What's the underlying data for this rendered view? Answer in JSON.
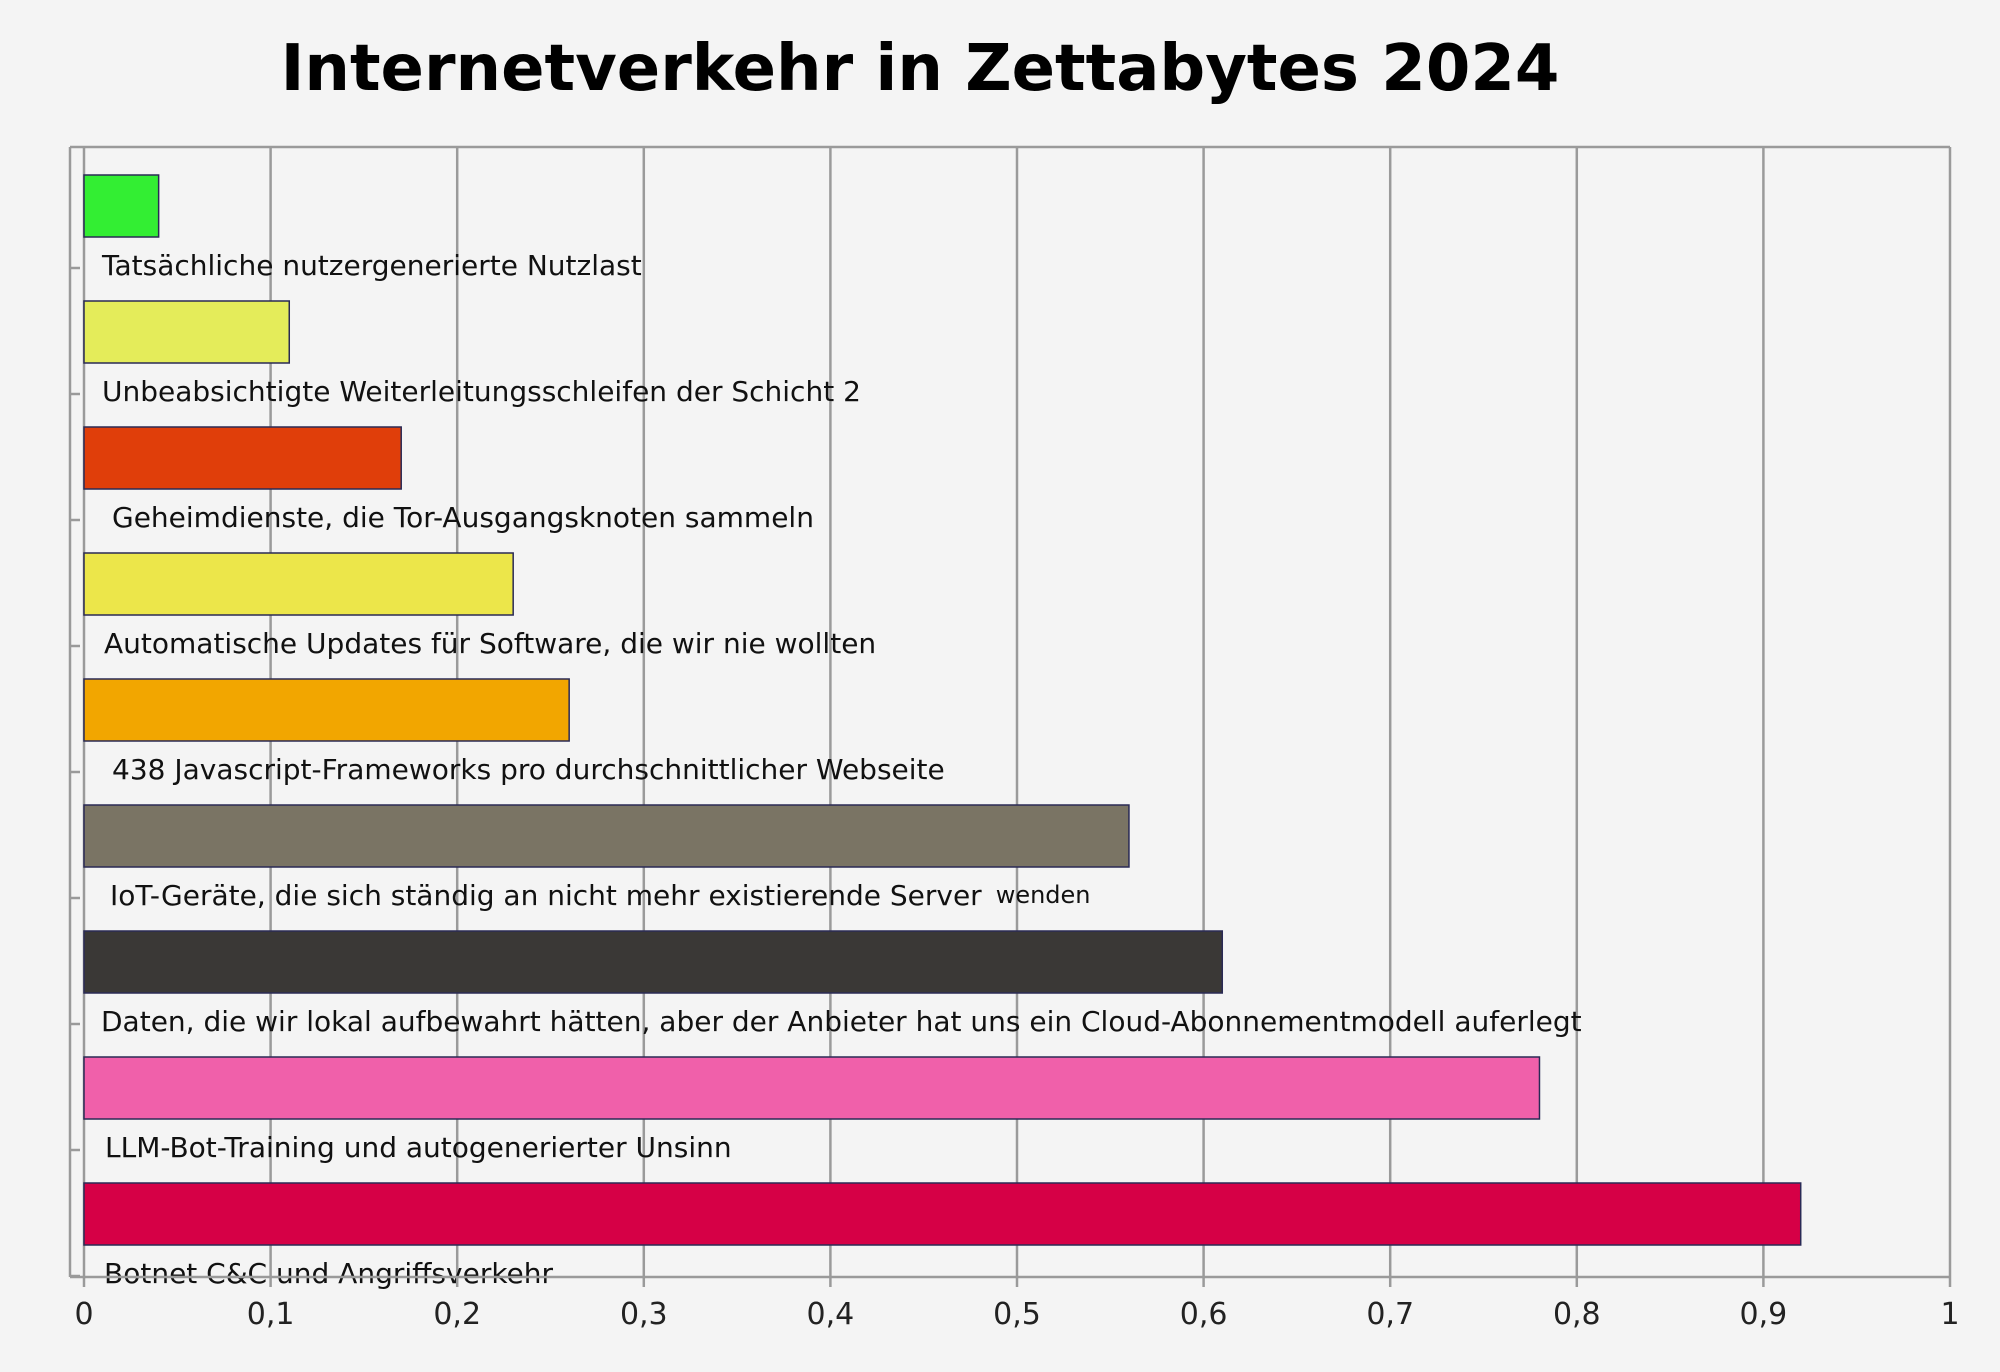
{
  "chart_data": {
    "type": "bar",
    "orientation": "horizontal",
    "title": "Internetverkehr in Zettabytes 2024",
    "xlabel": "",
    "ylabel": "",
    "xlim": [
      0,
      1
    ],
    "grid": true,
    "legend": "none",
    "xticks": [
      "0",
      "0,1",
      "0,2",
      "0,3",
      "0,4",
      "0,5",
      "0,6",
      "0,7",
      "0,8",
      "0,9",
      "1"
    ],
    "categories": [
      "Tatsächliche nutzergenerierte Nutzlast",
      "Unbeabsichtigte Weiterleitungsschleifen der Schicht 2",
      "Geheimdienste, die Tor-Ausgangsknoten sammeln",
      "Automatische Updates für Software, die wir nie wollten",
      "438 Javascript-Frameworks pro durchschnittlicher Webseite",
      "IoT-Geräte, die sich ständig an nicht mehr existierende Server",
      "Daten, die wir lokal aufbewahrt hätten, aber der Anbieter hat uns ein Cloud-Abonnementmodell auferlegt",
      "LLM-Bot-Training und autogenerierter Unsinn",
      "Botnet C&C und Angriffsverkehr"
    ],
    "label_suffixes": [
      "",
      "",
      "",
      "",
      "",
      "wenden",
      "",
      "",
      ""
    ],
    "values": [
      0.04,
      0.11,
      0.17,
      0.23,
      0.26,
      0.56,
      0.61,
      0.78,
      0.92
    ],
    "colors": [
      "#33ee33",
      "#e4ec5a",
      "#e03e0a",
      "#ece64a",
      "#f2a600",
      "#7a7464",
      "#3a3836",
      "#f060aa",
      "#d60046"
    ]
  }
}
